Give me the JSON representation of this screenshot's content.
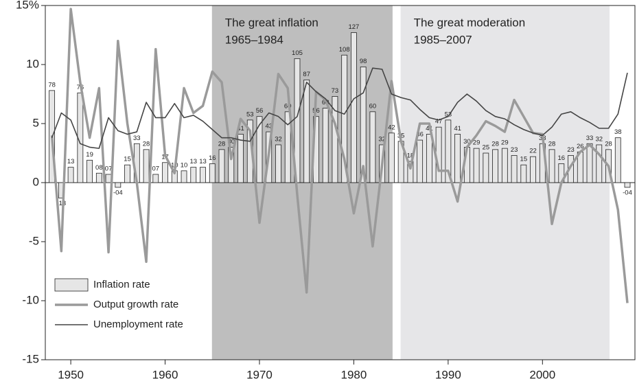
{
  "chart_data": {
    "type": "bar_line",
    "x": [
      1948,
      1949,
      1950,
      1951,
      1952,
      1953,
      1954,
      1955,
      1956,
      1957,
      1958,
      1959,
      1960,
      1961,
      1962,
      1963,
      1964,
      1965,
      1966,
      1967,
      1968,
      1969,
      1970,
      1971,
      1972,
      1973,
      1974,
      1975,
      1976,
      1977,
      1978,
      1979,
      1980,
      1981,
      1982,
      1983,
      1984,
      1985,
      1986,
      1987,
      1988,
      1989,
      1990,
      1991,
      1992,
      1993,
      1994,
      1995,
      1996,
      1997,
      1998,
      1999,
      2000,
      2001,
      2002,
      2003,
      2004,
      2005,
      2006,
      2007,
      2008,
      2009
    ],
    "series": [
      {
        "name": "Inflation rate",
        "kind": "bar",
        "color": "#e6e6e6",
        "values": [
          7.8,
          -1.3,
          1.3,
          7.6,
          1.9,
          0.8,
          0.7,
          -0.4,
          1.5,
          3.3,
          2.8,
          0.7,
          1.7,
          1.0,
          1.0,
          1.3,
          1.3,
          1.6,
          2.8,
          3.0,
          4.1,
          5.3,
          5.6,
          4.3,
          3.2,
          6.0,
          10.5,
          8.7,
          5.6,
          6.3,
          7.3,
          10.8,
          12.7,
          9.8,
          6.0,
          3.2,
          4.2,
          3.5,
          1.8,
          3.6,
          4.1,
          4.7,
          5.3,
          4.1,
          3.0,
          2.9,
          2.5,
          2.8,
          2.9,
          2.3,
          1.5,
          2.2,
          3.3,
          2.8,
          1.6,
          2.3,
          2.6,
          3.3,
          3.2,
          2.8,
          3.8,
          -0.4
        ],
        "value_labels": [
          "78",
          "-13",
          "13",
          "76",
          "19",
          "08",
          "07",
          "-04",
          "15",
          "33",
          "28",
          "07",
          "17",
          "10",
          "10",
          "13",
          "13",
          "16",
          "28",
          "30",
          "41",
          "53",
          "56",
          "43",
          "32",
          "60",
          "105",
          "87",
          "56",
          "63",
          "73",
          "108",
          "127",
          "98",
          "60",
          "32",
          "42",
          "35",
          "18",
          "36",
          "41",
          "47",
          "53",
          "41",
          "30",
          "29",
          "25",
          "28",
          "29",
          "23",
          "15",
          "22",
          "33",
          "28",
          "16",
          "23",
          "26",
          "33",
          "32",
          "28",
          "38",
          "-04"
        ]
      },
      {
        "name": "Output growth rate",
        "kind": "line",
        "color": "#9a9a9a",
        "values": [
          4.0,
          -5.8,
          14.7,
          8.5,
          3.8,
          8.0,
          -5.9,
          12.0,
          5.0,
          0.0,
          -6.7,
          11.3,
          2.3,
          0.8,
          8.0,
          5.9,
          6.5,
          9.4,
          8.5,
          2.0,
          5.4,
          4.4,
          -3.4,
          2.5,
          9.2,
          8.0,
          -1.0,
          -9.3,
          7.7,
          7.0,
          5.0,
          2.0,
          -2.6,
          1.4,
          -5.4,
          1.5,
          8.6,
          3.5,
          1.2,
          5.0,
          5.0,
          1.0,
          1.0,
          -1.6,
          3.0,
          4.0,
          5.2,
          4.8,
          4.3,
          7.0,
          5.6,
          4.2,
          4.1,
          -3.5,
          0.0,
          1.4,
          2.6,
          3.2,
          2.4,
          1.4,
          -2.3,
          -10.2
        ]
      },
      {
        "name": "Unemployment rate",
        "kind": "line",
        "color": "#444444",
        "values": [
          3.8,
          5.9,
          5.3,
          3.3,
          3.0,
          2.9,
          5.5,
          4.4,
          4.1,
          4.3,
          6.8,
          5.5,
          5.5,
          6.7,
          5.5,
          5.7,
          5.2,
          4.5,
          3.8,
          3.8,
          3.6,
          3.5,
          4.9,
          5.9,
          5.6,
          4.9,
          5.6,
          8.5,
          7.7,
          7.1,
          6.1,
          5.8,
          7.1,
          7.6,
          9.7,
          9.6,
          7.5,
          7.2,
          7.0,
          6.2,
          5.5,
          5.3,
          5.6,
          6.8,
          7.5,
          6.9,
          6.1,
          5.6,
          5.4,
          4.9,
          4.5,
          4.2,
          4.0,
          4.7,
          5.8,
          6.0,
          5.5,
          5.1,
          4.6,
          4.6,
          5.8,
          9.3
        ]
      }
    ],
    "shaded_periods": [
      {
        "name": "The great inflation",
        "label": "1965–1984",
        "start": 1965,
        "end": 1984,
        "color": "#bebebe"
      },
      {
        "name": "The great moderation",
        "label": "1985–2007",
        "start": 1985,
        "end": 2007,
        "color": "#e6e6e8"
      }
    ],
    "xlim": [
      1947.3,
      2009.8
    ],
    "xticks": [
      1950,
      1960,
      1970,
      1980,
      1990,
      2000
    ],
    "ylim": [
      -15,
      15
    ],
    "yticks": [
      -15,
      -10,
      -5,
      0,
      5,
      10,
      {
        "value": 15,
        "label": "15%"
      }
    ],
    "legend": "lower left"
  }
}
